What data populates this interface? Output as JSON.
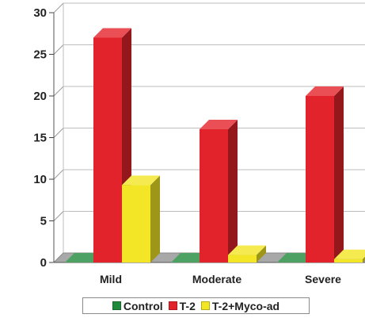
{
  "chart_data": {
    "type": "bar",
    "style": "3d-clustered",
    "categories": [
      "Mild",
      "Moderate",
      "Severe"
    ],
    "series": [
      {
        "name": "Control",
        "color": "#1f8a3c",
        "values": [
          0,
          0,
          0
        ]
      },
      {
        "name": "T-2",
        "color": "#e3232b",
        "values": [
          27,
          16,
          20
        ]
      },
      {
        "name": "T-2+Myco-ad",
        "color": "#f2e626",
        "values": [
          9.3,
          0.9,
          0.4
        ]
      }
    ],
    "yticks": [
      "0",
      "5",
      "10",
      "15",
      "20",
      "25",
      "30"
    ],
    "ylim": [
      0,
      30
    ],
    "title": "",
    "xlabel": "",
    "ylabel": "",
    "grid": true,
    "legend_position": "bottom"
  }
}
